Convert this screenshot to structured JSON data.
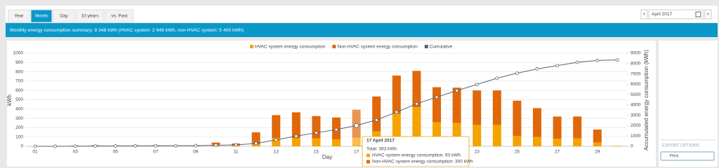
{
  "tabs": [
    "Year",
    "Month",
    "Day",
    "10 years",
    "vs. Past"
  ],
  "date_picker": {
    "prev": "<",
    "value": "April 2017",
    "next": ">"
  },
  "summary": "Monthly energy consumption summary: 8 348 kWh (HVAC system: 2 948 kWh, non-HVAC system: 5 400 kWh)",
  "chart_data": {
    "type": "bar",
    "x_label": "Day",
    "y_label": "kWh",
    "y2_label": "Accumulated energy consumption (kWh)",
    "categories": [
      "01",
      null,
      "03",
      null,
      "05",
      null,
      "07",
      null,
      "09",
      null,
      "11",
      null,
      "13",
      null,
      "15",
      null,
      "17",
      null,
      "19",
      null,
      "21",
      null,
      "23",
      null,
      "25",
      null,
      "27",
      null,
      "29",
      null
    ],
    "series": [
      {
        "name": "HVAC system energy consumption",
        "color": "#f5a300",
        "values": [
          2,
          2,
          6,
          8,
          6,
          7,
          7,
          4,
          4,
          20,
          15,
          20,
          90,
          90,
          85,
          75,
          93,
          160,
          350,
          420,
          260,
          250,
          230,
          230,
          110,
          100,
          80,
          85,
          40,
          5
        ]
      },
      {
        "name": "Non-HVAC system energy consumption",
        "color": "#e0680a",
        "values": [
          0,
          0,
          2,
          4,
          2,
          3,
          3,
          1,
          1,
          20,
          15,
          130,
          245,
          275,
          240,
          235,
          300,
          375,
          410,
          390,
          375,
          380,
          370,
          370,
          380,
          310,
          240,
          235,
          140,
          0
        ]
      },
      {
        "name": "Cumulative",
        "color": "#52657a",
        "axis": "y2",
        "values": [
          2,
          4,
          12,
          24,
          32,
          42,
          52,
          57,
          62,
          102,
          132,
          282,
          617,
          982,
          1307,
          1617,
          2010,
          2545,
          3305,
          4115,
          4750,
          5380,
          5980,
          6580,
          7070,
          7480,
          7800,
          8120,
          8300,
          8348
        ]
      }
    ],
    "ylim": [
      0,
      1000
    ],
    "yticks": [
      0,
      100,
      200,
      300,
      400,
      500,
      600,
      700,
      800,
      900,
      1000
    ],
    "y2lim": [
      0,
      9000
    ],
    "y2ticks": [
      0,
      1000,
      2000,
      3000,
      4000,
      5000,
      6000,
      7000,
      8000,
      9000
    ],
    "grid": true,
    "stacked": true,
    "legend": "top"
  },
  "tooltip": {
    "title": "17 April 2017",
    "total": "Total: 393 kWh",
    "lines": [
      "HVAC system energy consumption: 93 kWh",
      "Non-HVAC system energy consumption: 300 kWh"
    ]
  },
  "export": {
    "title": "EXPORT OPTIONS",
    "print": "Print"
  }
}
